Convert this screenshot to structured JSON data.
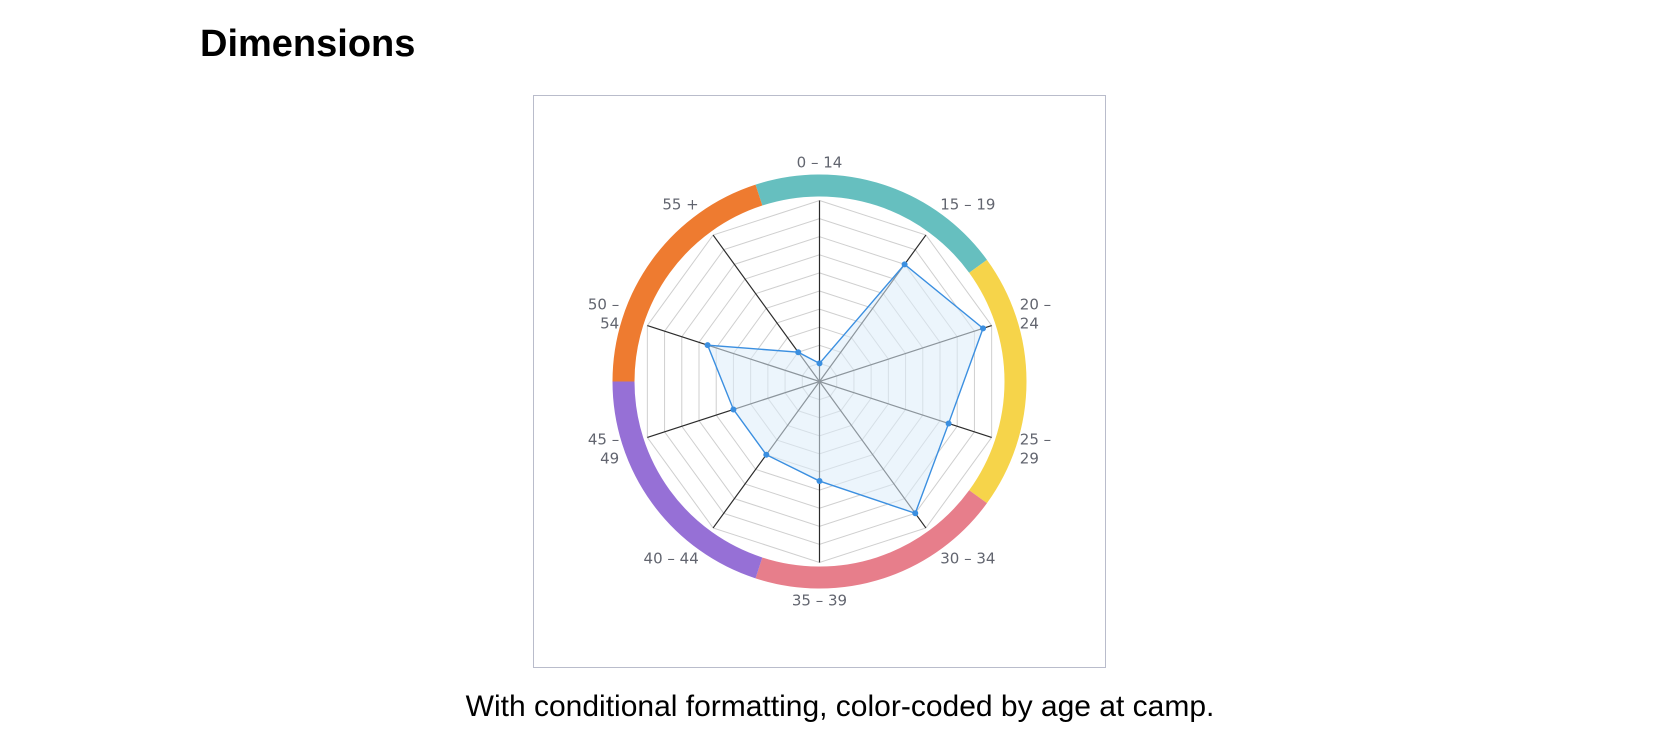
{
  "page": {
    "title": "Dimensions",
    "caption": "With conditional formatting, color-coded by age at camp."
  },
  "chart_data": {
    "type": "radar",
    "categories": [
      "0 – 14",
      "15 – 19",
      "20 – 24",
      "25 – 29",
      "30 – 34",
      "35 – 39",
      "40 – 44",
      "45 – 49",
      "50 – 54",
      "55 +"
    ],
    "label_lines": [
      [
        "0 – 14"
      ],
      [
        "15 – 19"
      ],
      [
        "20 –",
        "24"
      ],
      [
        "25 –",
        "29"
      ],
      [
        "30 – 34"
      ],
      [
        "35 – 39"
      ],
      [
        "40 – 44"
      ],
      [
        "45 –",
        "49"
      ],
      [
        "50 –",
        "54"
      ],
      [
        "55 +"
      ]
    ],
    "series": [
      {
        "values": [
          0.1,
          0.8,
          0.95,
          0.75,
          0.9,
          0.55,
          0.5,
          0.5,
          0.65,
          0.2
        ],
        "color": "#3b8fe0",
        "fill": "#dcecf9"
      }
    ],
    "rlim": [
      0,
      1
    ],
    "grid_levels": 10,
    "grid": true,
    "ring_segments": [
      {
        "categories": [
          "0 – 14",
          "15 – 19"
        ],
        "color": "#66bfbf"
      },
      {
        "categories": [
          "20 – 24",
          "25 – 29"
        ],
        "color": "#f6d44a"
      },
      {
        "categories": [
          "30 – 34",
          "35 – 39"
        ],
        "color": "#e77e8b"
      },
      {
        "categories": [
          "40 – 44",
          "45 – 49"
        ],
        "color": "#9670d6"
      },
      {
        "categories": [
          "50 – 54",
          "55 +"
        ],
        "color": "#ee7b30"
      }
    ]
  }
}
